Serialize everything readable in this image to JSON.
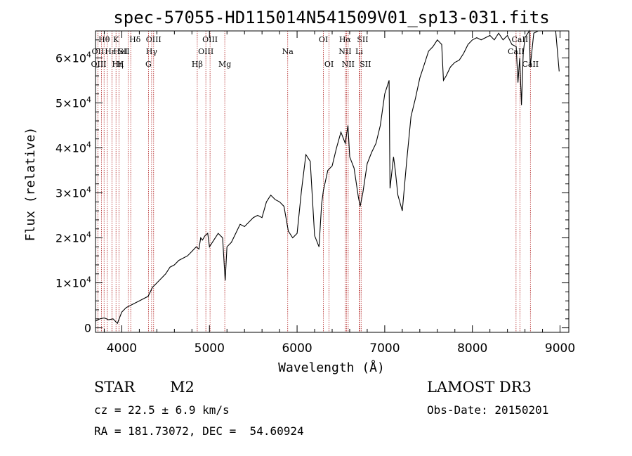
{
  "chart_data": {
    "type": "line",
    "title": "spec-57055-HD115014N541509V01_sp13-031.fits",
    "xlabel": "Wavelength (Å)",
    "ylabel": "Flux (relative)",
    "xlim": [
      3700,
      9100
    ],
    "ylim": [
      -1000,
      66000
    ],
    "x_ticks": [
      4000,
      5000,
      6000,
      7000,
      8000,
      9000
    ],
    "x_tick_labels": [
      "4000",
      "5000",
      "6000",
      "7000",
      "8000",
      "9000"
    ],
    "y_ticks": [
      0,
      10000,
      20000,
      30000,
      40000,
      50000,
      60000
    ],
    "y_tick_labels": [
      {
        "mant": "0",
        "exp": ""
      },
      {
        "mant": "1×10",
        "exp": "4"
      },
      {
        "mant": "2×10",
        "exp": "4"
      },
      {
        "mant": "3×10",
        "exp": "4"
      },
      {
        "mant": "4×10",
        "exp": "4"
      },
      {
        "mant": "5×10",
        "exp": "4"
      },
      {
        "mant": "6×10",
        "exp": "4"
      }
    ],
    "series": [
      {
        "name": "spectrum",
        "x": [
          3700,
          3750,
          3800,
          3850,
          3900,
          3950,
          3980,
          4000,
          4050,
          4100,
          4150,
          4200,
          4250,
          4300,
          4350,
          4400,
          4450,
          4500,
          4550,
          4600,
          4650,
          4700,
          4750,
          4800,
          4850,
          4880,
          4900,
          4920,
          4950,
          4980,
          5000,
          5050,
          5100,
          5150,
          5180,
          5200,
          5250,
          5300,
          5350,
          5400,
          5450,
          5500,
          5550,
          5600,
          5650,
          5700,
          5750,
          5800,
          5850,
          5900,
          5950,
          6000,
          6050,
          6100,
          6150,
          6200,
          6250,
          6280,
          6300,
          6350,
          6400,
          6450,
          6500,
          6550,
          6580,
          6600,
          6650,
          6700,
          6720,
          6750,
          6800,
          6850,
          6900,
          6950,
          7000,
          7050,
          7060,
          7100,
          7120,
          7150,
          7200,
          7250,
          7300,
          7350,
          7400,
          7450,
          7500,
          7550,
          7600,
          7650,
          7670,
          7700,
          7750,
          7800,
          7850,
          7900,
          7950,
          8000,
          8050,
          8100,
          8150,
          8200,
          8250,
          8300,
          8350,
          8400,
          8450,
          8500,
          8520,
          8540,
          8560,
          8580,
          8600,
          8650,
          8660,
          8700,
          8750,
          8800,
          8850,
          8900,
          8950,
          8990
        ],
        "y": [
          1500,
          2000,
          2200,
          1800,
          2000,
          1000,
          2500,
          3500,
          4500,
          5000,
          5500,
          6000,
          6500,
          7000,
          9000,
          10000,
          11000,
          12000,
          13500,
          14000,
          15000,
          15500,
          16000,
          17000,
          18000,
          17500,
          20000,
          19500,
          20500,
          21000,
          18000,
          19500,
          21000,
          20000,
          10500,
          18000,
          19000,
          21000,
          23000,
          22500,
          23500,
          24500,
          25000,
          24500,
          28000,
          29500,
          28500,
          28000,
          27000,
          21500,
          20000,
          21000,
          30500,
          38500,
          37000,
          20500,
          18000,
          27500,
          30500,
          35000,
          36000,
          40000,
          43500,
          41000,
          45000,
          38000,
          35500,
          29000,
          27000,
          30000,
          36500,
          39000,
          41000,
          45000,
          52000,
          55000,
          31000,
          38000,
          35000,
          29500,
          26000,
          37000,
          47000,
          51000,
          55500,
          58500,
          61500,
          62500,
          64000,
          63000,
          55000,
          56000,
          58000,
          59000,
          59500,
          61000,
          63000,
          64000,
          64500,
          64000,
          64500,
          65000,
          64000,
          65500,
          64000,
          65000,
          63000,
          62500,
          54500,
          60000,
          49500,
          61000,
          64500,
          67000,
          58000,
          65500,
          66500,
          67000,
          68000,
          67000,
          66500,
          57000
        ]
      }
    ],
    "lines": [
      {
        "label": "Hθ",
        "x": 3798,
        "row": 0,
        "offset": 0
      },
      {
        "label": "OII",
        "x": 3727,
        "row": 1,
        "offset": 0
      },
      {
        "label": "OIII",
        "x": 3768,
        "row": 2,
        "offset": -4
      },
      {
        "label": "Hε",
        "x": 3835,
        "row": 1,
        "offset": 4
      },
      {
        "label": "Hη",
        "x": 3889,
        "row": 2,
        "offset": 8
      },
      {
        "label": "K",
        "x": 3934,
        "row": 0,
        "offset": 0
      },
      {
        "label": "H",
        "x": 3969,
        "row": 2,
        "offset": 2
      },
      {
        "label": "HeI",
        "x": 3889,
        "row": 1,
        "offset": 12
      },
      {
        "label": "SII",
        "x": 4072,
        "row": 1,
        "offset": -6
      },
      {
        "label": "Hδ",
        "x": 4102,
        "row": 0,
        "offset": 6
      },
      {
        "label": "OIII",
        "x": 4363,
        "row": 0,
        "offset": 0
      },
      {
        "label": "Hγ",
        "x": 4340,
        "row": 1,
        "offset": 0
      },
      {
        "label": "G",
        "x": 4304,
        "row": 2,
        "offset": 0
      },
      {
        "label": "Hβ",
        "x": 4861,
        "row": 2,
        "offset": 0
      },
      {
        "label": "OIII",
        "x": 4959,
        "row": 1,
        "offset": 0
      },
      {
        "label": "OIII",
        "x": 5007,
        "row": 0,
        "offset": 0
      },
      {
        "label": "Mg",
        "x": 5175,
        "row": 2,
        "offset": 0
      },
      {
        "label": "Na",
        "x": 5893,
        "row": 1,
        "offset": 0
      },
      {
        "label": "OI",
        "x": 6300,
        "row": 0,
        "offset": 0
      },
      {
        "label": "OI",
        "x": 6364,
        "row": 2,
        "offset": 0
      },
      {
        "label": "Hα",
        "x": 6563,
        "row": 0,
        "offset": -2
      },
      {
        "label": "NII",
        "x": 6548,
        "row": 1,
        "offset": 0
      },
      {
        "label": "NII",
        "x": 6583,
        "row": 2,
        "offset": 0
      },
      {
        "label": "SII",
        "x": 6716,
        "row": 0,
        "offset": 4
      },
      {
        "label": "Li",
        "x": 6708,
        "row": 1,
        "offset": 0
      },
      {
        "label": "SII",
        "x": 6731,
        "row": 2,
        "offset": 6
      },
      {
        "label": "CaII",
        "x": 8542,
        "row": 0,
        "offset": 0
      },
      {
        "label": "CaII",
        "x": 8498,
        "row": 1,
        "offset": 0
      },
      {
        "label": "CaII",
        "x": 8662,
        "row": 2,
        "offset": 0
      }
    ]
  },
  "info": {
    "class": "STAR",
    "subclass": "M2",
    "cz": "cz = 22.5 ± 6.9 km/s",
    "radec": "RA = 181.73072, DEC =  54.60924",
    "survey": "LAMOST DR3",
    "obs_date": "Obs-Date: 20150201"
  }
}
